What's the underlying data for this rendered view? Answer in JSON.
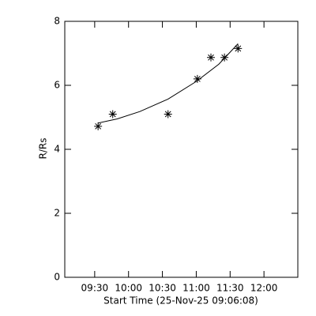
{
  "chart_data": {
    "type": "scatter",
    "xlabel": "Start Time (25-Nov-25 09:06:08)",
    "ylabel": "R/Rs",
    "series": [
      {
        "color": "#000000",
        "marker": "asterisk",
        "x": [
          573,
          586,
          635,
          661,
          673,
          685,
          697
        ],
        "values": [
          4.72,
          5.1,
          5.1,
          6.2,
          6.87,
          6.87,
          7.15
        ]
      },
      {
        "color": "#000000",
        "marker": "line",
        "x": [
          573,
          590,
          610,
          635,
          660,
          680,
          697
        ],
        "values": [
          4.82,
          4.95,
          5.18,
          5.57,
          6.12,
          6.66,
          7.3
        ]
      }
    ],
    "xlim": [
      543.5,
      750
    ],
    "xticks": [
      {
        "value": 570,
        "label": "09:30"
      },
      {
        "value": 600,
        "label": "10:00"
      },
      {
        "value": 630,
        "label": "10:30"
      },
      {
        "value": 660,
        "label": "11:00"
      },
      {
        "value": 690,
        "label": "11:30"
      },
      {
        "value": 720,
        "label": "12:00"
      }
    ],
    "ylim": [
      0,
      8
    ],
    "yticks": [
      0,
      2,
      4,
      6,
      8
    ]
  }
}
